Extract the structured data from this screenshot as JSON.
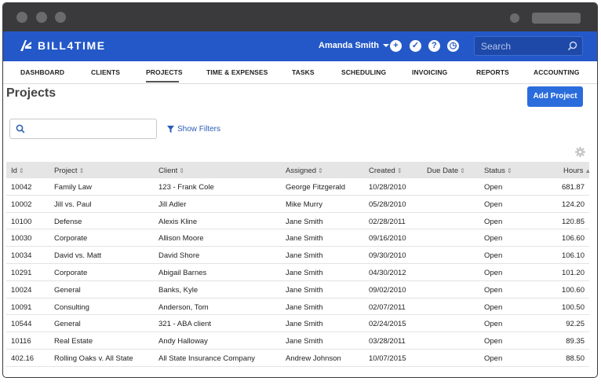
{
  "app": {
    "logo_text": "BILL4TIME",
    "user_name": "Amanda Smith",
    "search_placeholder": "Search",
    "icons": [
      "plus-icon",
      "check-icon",
      "help-icon",
      "clock-icon"
    ]
  },
  "nav": {
    "items": [
      "DASHBOARD",
      "CLIENTS",
      "PROJECTS",
      "TIME & EXPENSES",
      "TASKS",
      "SCHEDULING",
      "INVOICING",
      "REPORTS",
      "ACCOUNTING"
    ],
    "active": "PROJECTS"
  },
  "page": {
    "title": "Projects",
    "add_button": "Add Project",
    "filter_placeholder": "",
    "show_filters": "Show Filters"
  },
  "table": {
    "columns": [
      "Id",
      "Project",
      "Client",
      "Assigned",
      "Created",
      "Due Date",
      "Status",
      "Hours"
    ],
    "sort_indicator": "⬍",
    "rows": [
      [
        "10042",
        "Family Law",
        "123 - Frank Cole",
        "George Fitzgerald",
        "10/28/2010",
        "",
        "Open",
        "681.87"
      ],
      [
        "10002",
        "Jill vs. Paul",
        "Jill Adler",
        "Mike Murry",
        "05/28/2010",
        "",
        "Open",
        "124.20"
      ],
      [
        "10100",
        "Defense",
        "Alexis Kline",
        "Jane Smith",
        "02/28/2011",
        "",
        "Open",
        "120.85"
      ],
      [
        "10030",
        "Corporate",
        "Allison Moore",
        "Jane Smith",
        "09/16/2010",
        "",
        "Open",
        "106.60"
      ],
      [
        "10034",
        "David vs. Matt",
        "David Shore",
        "Jane Smith",
        "09/30/2010",
        "",
        "Open",
        "106.10"
      ],
      [
        "10291",
        "Corporate",
        "Abigail Barnes",
        "Jane Smith",
        "04/30/2012",
        "",
        "Open",
        "101.20"
      ],
      [
        "10024",
        "General",
        "Banks, Kyle",
        "Jane Smith",
        "09/02/2010",
        "",
        "Open",
        "100.60"
      ],
      [
        "10091",
        "Consulting",
        "Anderson, Tom",
        "Jane Smith",
        "02/07/2011",
        "",
        "Open",
        "100.50"
      ],
      [
        "10544",
        "General",
        "321 - ABA client",
        "Jane Smith",
        "02/24/2015",
        "",
        "Open",
        "92.25"
      ],
      [
        "10116",
        "Real Estate",
        "Andy Halloway",
        "Jane Smith",
        "03/28/2011",
        "",
        "Open",
        "89.35"
      ],
      [
        "402.16",
        "Rolling Oaks v. All State",
        "All State Insurance Company",
        "Andrew Johnson",
        "10/07/2015",
        "",
        "Open",
        "88.50"
      ]
    ]
  },
  "colors": {
    "brand_blue": "#2458c8",
    "button_blue": "#2a6cdc",
    "link_blue": "#2a5db5"
  }
}
